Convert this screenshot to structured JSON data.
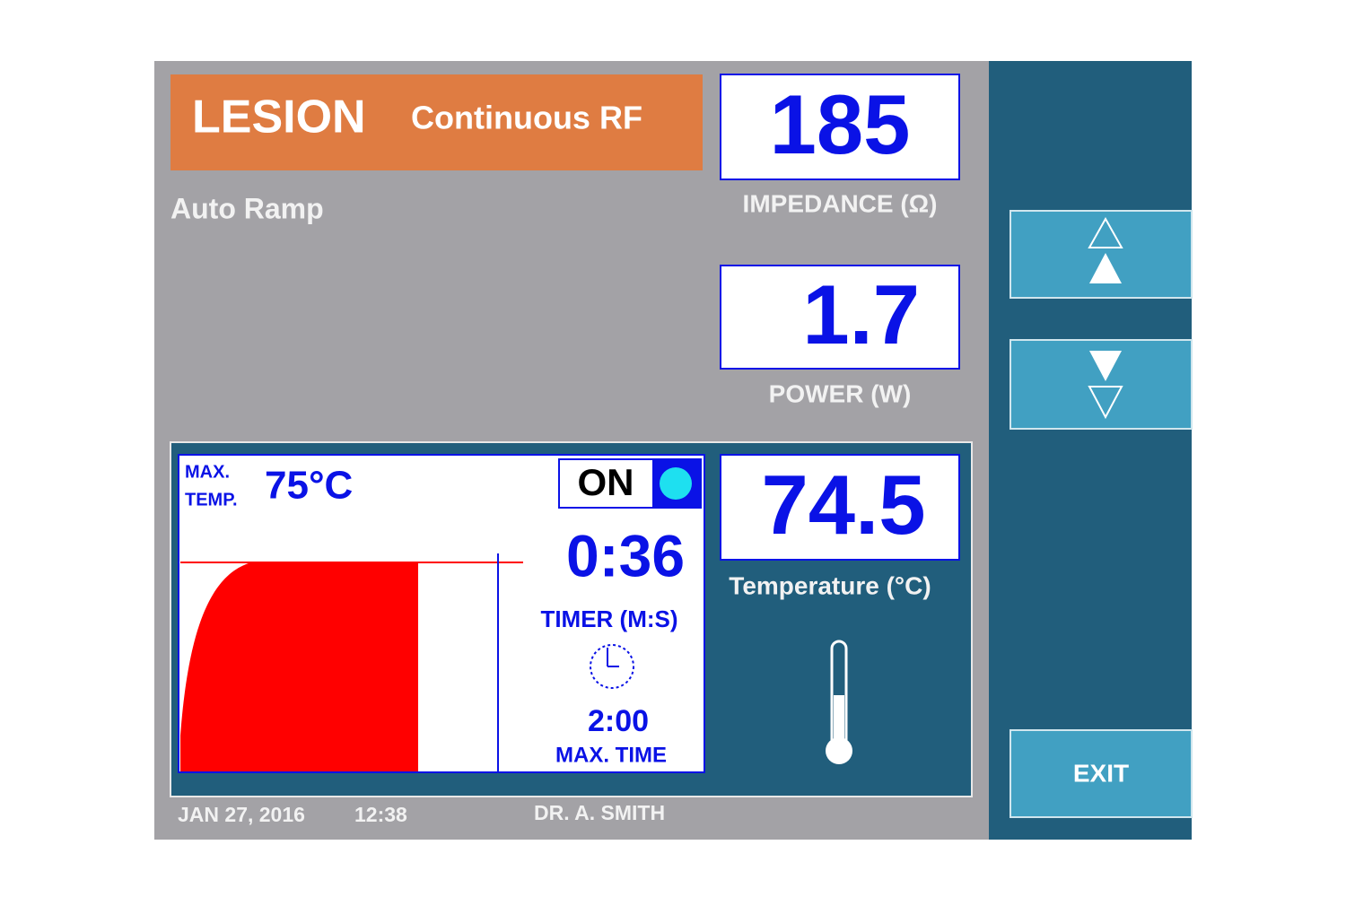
{
  "header": {
    "mode": "LESION",
    "submode": "Continuous RF"
  },
  "ramp": "Auto Ramp",
  "readouts": {
    "impedance": {
      "value": "185",
      "label": "IMPEDANCE (Ω)"
    },
    "power": {
      "value": "1.7",
      "label": "POWER (W)"
    },
    "temperature": {
      "value": "74.5",
      "label": "Temperature (°C)"
    }
  },
  "panel": {
    "max_temp_label": [
      "MAX.",
      "TEMP."
    ],
    "max_temp": "75°C",
    "status": "ON",
    "timer": "0:36",
    "timer_label": "TIMER (M:S)",
    "max_time": "2:00",
    "max_time_label": "MAX. TIME"
  },
  "footer": {
    "date": "JAN 27, 2016",
    "time": "12:38",
    "user": "DR. A. SMITH"
  },
  "buttons": {
    "exit": "EXIT"
  }
}
